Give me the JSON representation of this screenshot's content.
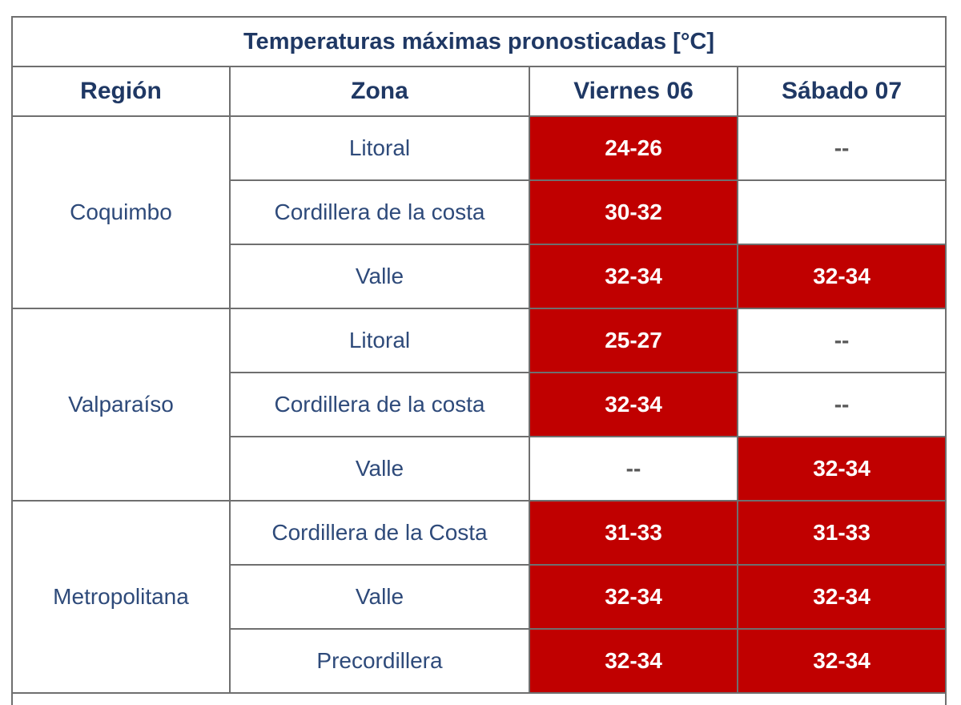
{
  "colors": {
    "hot": "#c00000",
    "text": "#1f3864",
    "border": "#6f6f6f"
  },
  "table": {
    "title": "Temperaturas máximas pronosticadas [°C]",
    "headers": [
      "Región",
      "Zona",
      "Viernes 06",
      "Sábado 07"
    ],
    "rows": [
      {
        "region": "Coquimbo",
        "zone": "Litoral",
        "fri": "24-26",
        "fri_hot": true,
        "sat": "--",
        "sat_hot": false
      },
      {
        "region": "Coquimbo",
        "zone": "Cordillera de la costa",
        "fri": "30-32",
        "fri_hot": true,
        "sat": "",
        "sat_hot": false
      },
      {
        "region": "Coquimbo",
        "zone": "Valle",
        "fri": "32-34",
        "fri_hot": true,
        "sat": "32-34",
        "sat_hot": true
      },
      {
        "region": "Valparaíso",
        "zone": "Litoral",
        "fri": "25-27",
        "fri_hot": true,
        "sat": "--",
        "sat_hot": false
      },
      {
        "region": "Valparaíso",
        "zone": "Cordillera de la costa",
        "fri": "32-34",
        "fri_hot": true,
        "sat": "--",
        "sat_hot": false
      },
      {
        "region": "Valparaíso",
        "zone": "Valle",
        "fri": "--",
        "fri_hot": false,
        "sat": "32-34",
        "sat_hot": true
      },
      {
        "region": "Metropolitana",
        "zone": "Cordillera de la Costa",
        "fri": "31-33",
        "fri_hot": true,
        "sat": "31-33",
        "sat_hot": true
      },
      {
        "region": "Metropolitana",
        "zone": "Valle",
        "fri": "32-34",
        "fri_hot": true,
        "sat": "32-34",
        "sat_hot": true
      },
      {
        "region": "Metropolitana",
        "zone": "Precordillera",
        "fri": "32-34",
        "fri_hot": true,
        "sat": "32-34",
        "sat_hot": true
      }
    ]
  }
}
